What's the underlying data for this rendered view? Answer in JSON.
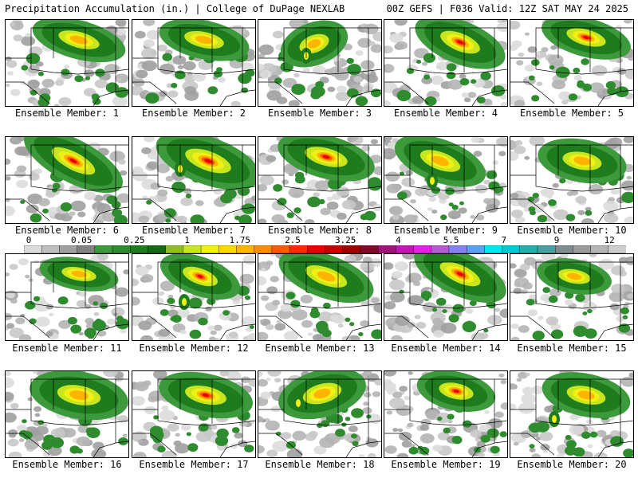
{
  "header": {
    "left": "Precipitation Accumulation (in.) | College of DuPage NEXLAB",
    "right": "00Z GEFS | F036 Valid: 12Z SAT MAY 24 2025"
  },
  "legend": {
    "ticks": [
      "0",
      "0.05",
      "0.25",
      "1",
      "1.75",
      "2.5",
      "3.25",
      "4",
      "5.5",
      "7",
      "9",
      "12"
    ],
    "colors": [
      "#dcdcdc",
      "#bebebe",
      "#a0a0a0",
      "#828282",
      "#3c9a3c",
      "#2e8b2e",
      "#1e7b1e",
      "#126a12",
      "#8fbf1e",
      "#c8e61e",
      "#f0f014",
      "#ffd700",
      "#ffb400",
      "#ff8c00",
      "#ff5a00",
      "#ff2800",
      "#e60000",
      "#c80000",
      "#a00000",
      "#820a28",
      "#a0147a",
      "#c814b4",
      "#e61ee6",
      "#b45ad2",
      "#8282f0",
      "#5aa0f0",
      "#00e6f0",
      "#00c8d2",
      "#20b2aa",
      "#46a0a0",
      "#7d8c8c",
      "#9a9a9a",
      "#b4b4b4",
      "#cdcdcd"
    ]
  },
  "members": [
    {
      "label": "Ensemble Member: 1"
    },
    {
      "label": "Ensemble Member: 2"
    },
    {
      "label": "Ensemble Member: 3"
    },
    {
      "label": "Ensemble Member: 4"
    },
    {
      "label": "Ensemble Member: 5"
    },
    {
      "label": "Ensemble Member: 6"
    },
    {
      "label": "Ensemble Member: 7"
    },
    {
      "label": "Ensemble Member: 8"
    },
    {
      "label": "Ensemble Member: 9"
    },
    {
      "label": "Ensemble Member: 10"
    },
    {
      "label": "Ensemble Member: 11"
    },
    {
      "label": "Ensemble Member: 12"
    },
    {
      "label": "Ensemble Member: 13"
    },
    {
      "label": "Ensemble Member: 14"
    },
    {
      "label": "Ensemble Member: 15"
    },
    {
      "label": "Ensemble Member: 16"
    },
    {
      "label": "Ensemble Member: 17"
    },
    {
      "label": "Ensemble Member: 18"
    },
    {
      "label": "Ensemble Member: 19"
    },
    {
      "label": "Ensemble Member: 20"
    }
  ]
}
